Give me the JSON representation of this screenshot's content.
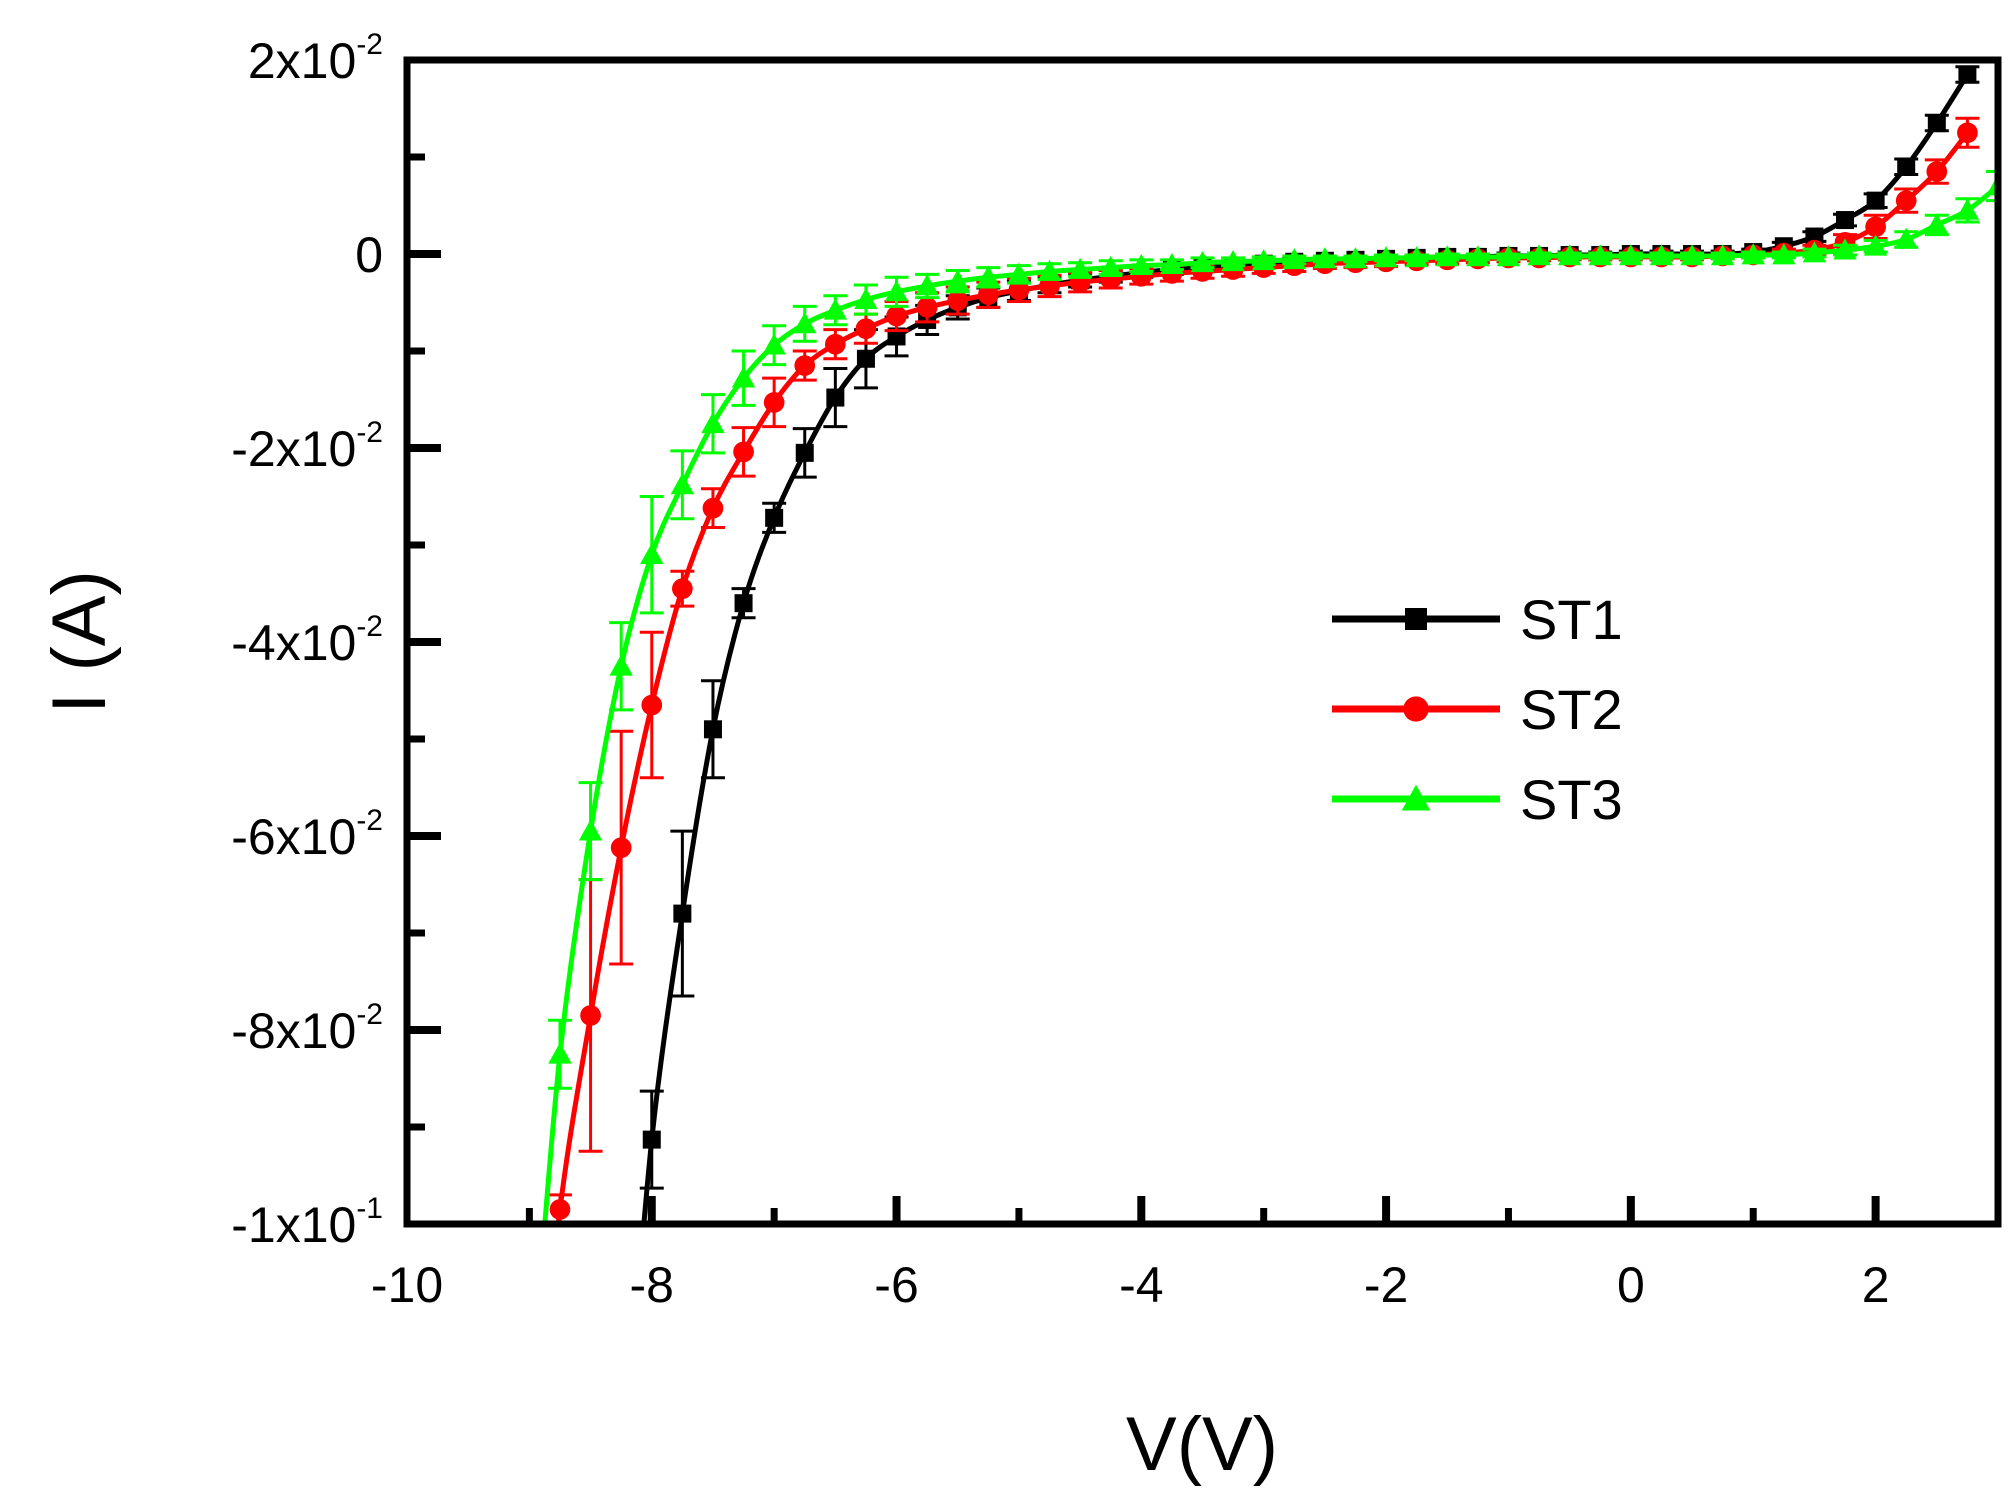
{
  "chart_data": {
    "type": "line",
    "xlabel": "V(V)",
    "ylabel": "I (A)",
    "xlim": [
      -10,
      3
    ],
    "ylim": [
      -0.1,
      0.02
    ],
    "x_ticks": [
      {
        "value": -10,
        "label": "-10"
      },
      {
        "value": -8,
        "label": "-8"
      },
      {
        "value": -6,
        "label": "-6"
      },
      {
        "value": -4,
        "label": "-4"
      },
      {
        "value": -2,
        "label": "-2"
      },
      {
        "value": 0,
        "label": "0"
      },
      {
        "value": 2,
        "label": "2"
      }
    ],
    "y_ticks": [
      {
        "value": 0.02,
        "mantissa": "2x10",
        "exponent": "-2"
      },
      {
        "value": 0,
        "mantissa": "0",
        "exponent": ""
      },
      {
        "value": -0.02,
        "mantissa": "-2x10",
        "exponent": "-2"
      },
      {
        "value": -0.04,
        "mantissa": "-4x10",
        "exponent": "-2"
      },
      {
        "value": -0.06,
        "mantissa": "-6x10",
        "exponent": "-2"
      },
      {
        "value": -0.08,
        "mantissa": "-8x10",
        "exponent": "-2"
      },
      {
        "value": -0.1,
        "mantissa": "-1x10",
        "exponent": "-1"
      }
    ],
    "legend_position": "center-right",
    "series": [
      {
        "name": "ST1",
        "color": "#000000",
        "marker": "square",
        "x": [
          -8.0,
          -7.75,
          -7.5,
          -7.25,
          -7.0,
          -6.75,
          -6.5,
          -6.25,
          -6.0,
          -5.75,
          -5.5,
          -5.25,
          -5.0,
          -4.75,
          -4.5,
          -4.25,
          -4.0,
          -3.75,
          -3.5,
          -3.25,
          -3.0,
          -2.75,
          -2.5,
          -2.25,
          -2.0,
          -1.75,
          -1.5,
          -1.25,
          -1.0,
          -0.75,
          -0.5,
          -0.25,
          0.0,
          0.25,
          0.5,
          0.75,
          1.0,
          1.25,
          1.5,
          1.75,
          2.0,
          2.25,
          2.5,
          2.75
        ],
        "y": [
          -0.0913,
          -0.068,
          -0.049,
          -0.036,
          -0.0272,
          -0.0205,
          -0.0148,
          -0.0108,
          -0.0085,
          -0.0068,
          -0.0055,
          -0.0045,
          -0.0038,
          -0.0032,
          -0.0027,
          -0.0023,
          -0.0019,
          -0.0016,
          -0.0014,
          -0.0012,
          -0.001,
          -0.0008,
          -0.0007,
          -0.0006,
          -0.0005,
          -0.0004,
          -0.0003,
          -0.0003,
          -0.0002,
          -0.0002,
          -0.0001,
          -0.0001,
          0.0,
          0.0,
          0.0,
          0.0,
          0.0002,
          0.0008,
          0.0018,
          0.0035,
          0.0055,
          0.009,
          0.0135,
          0.0185
        ],
        "err": [
          0.005,
          0.0085,
          0.005,
          0.0015,
          0.0015,
          0.0025,
          0.003,
          0.003,
          0.002,
          0.0015,
          0.0012,
          0.001,
          0.001,
          0.0008,
          0.0007,
          0.0006,
          0.0005,
          0.0005,
          0.0004,
          0.0004,
          0.0003,
          0.0003,
          0.0003,
          0.0003,
          0.0003,
          0.0003,
          0.0003,
          0.0003,
          0.0003,
          0.0003,
          0.0003,
          0.0003,
          0.0003,
          0.0003,
          0.0003,
          0.0003,
          0.0003,
          0.0004,
          0.0005,
          0.0006,
          0.0007,
          0.0008,
          0.0008,
          0.0008
        ]
      },
      {
        "name": "ST2",
        "color": "#ff0000",
        "marker": "circle",
        "x": [
          -8.75,
          -8.5,
          -8.25,
          -8.0,
          -7.75,
          -7.5,
          -7.25,
          -7.0,
          -6.75,
          -6.5,
          -6.25,
          -6.0,
          -5.75,
          -5.5,
          -5.25,
          -5.0,
          -4.75,
          -4.5,
          -4.25,
          -4.0,
          -3.75,
          -3.5,
          -3.25,
          -3.0,
          -2.75,
          -2.5,
          -2.25,
          -2.0,
          -1.75,
          -1.5,
          -1.25,
          -1.0,
          -0.75,
          -0.5,
          -0.25,
          0.0,
          0.25,
          0.5,
          0.75,
          1.0,
          1.25,
          1.5,
          1.75,
          2.0,
          2.25,
          2.5,
          2.75
        ],
        "y": [
          -0.0985,
          -0.0785,
          -0.0612,
          -0.0465,
          -0.0345,
          -0.0262,
          -0.0204,
          -0.0153,
          -0.0115,
          -0.0093,
          -0.0077,
          -0.0064,
          -0.0055,
          -0.0048,
          -0.0042,
          -0.0037,
          -0.0033,
          -0.0029,
          -0.0026,
          -0.0023,
          -0.002,
          -0.0018,
          -0.0016,
          -0.0014,
          -0.0012,
          -0.001,
          -0.0009,
          -0.0008,
          -0.0007,
          -0.0006,
          -0.0005,
          -0.0004,
          -0.0004,
          -0.0003,
          -0.0003,
          -0.0003,
          -0.0003,
          -0.0003,
          -0.0002,
          -0.0001,
          0.0001,
          0.0004,
          0.0012,
          0.0028,
          0.0055,
          0.0085,
          0.0125
        ],
        "err": [
          0.0015,
          0.014,
          0.012,
          0.0075,
          0.0018,
          0.002,
          0.0025,
          0.0025,
          0.0015,
          0.0015,
          0.0015,
          0.0015,
          0.0015,
          0.0014,
          0.0013,
          0.0012,
          0.0011,
          0.001,
          0.0009,
          0.0008,
          0.0008,
          0.0007,
          0.0007,
          0.0006,
          0.0006,
          0.0005,
          0.0005,
          0.0005,
          0.0004,
          0.0004,
          0.0004,
          0.0004,
          0.0003,
          0.0003,
          0.0003,
          0.0003,
          0.0003,
          0.0003,
          0.0003,
          0.0003,
          0.0004,
          0.0005,
          0.0008,
          0.0012,
          0.0012,
          0.0012,
          0.0015
        ]
      },
      {
        "name": "ST3",
        "color": "#00ff00",
        "marker": "triangle",
        "x": [
          -8.75,
          -8.5,
          -8.25,
          -8.0,
          -7.75,
          -7.5,
          -7.25,
          -7.0,
          -6.75,
          -6.5,
          -6.25,
          -6.0,
          -5.75,
          -5.5,
          -5.25,
          -5.0,
          -4.75,
          -4.5,
          -4.25,
          -4.0,
          -3.75,
          -3.5,
          -3.25,
          -3.0,
          -2.75,
          -2.5,
          -2.25,
          -2.0,
          -1.75,
          -1.5,
          -1.25,
          -1.0,
          -0.75,
          -0.5,
          -0.25,
          0.0,
          0.25,
          0.5,
          0.75,
          1.0,
          1.25,
          1.5,
          1.75,
          2.0,
          2.25,
          2.5,
          2.75,
          3.0
        ],
        "y": [
          -0.0825,
          -0.0595,
          -0.0425,
          -0.031,
          -0.0238,
          -0.0175,
          -0.0128,
          -0.0094,
          -0.0072,
          -0.0058,
          -0.0047,
          -0.0039,
          -0.0033,
          -0.0028,
          -0.0024,
          -0.0021,
          -0.0018,
          -0.0016,
          -0.0014,
          -0.0012,
          -0.0011,
          -0.0009,
          -0.0008,
          -0.0007,
          -0.0006,
          -0.0005,
          -0.0005,
          -0.0004,
          -0.0004,
          -0.0003,
          -0.0003,
          -0.0003,
          -0.0002,
          -0.0002,
          -0.0002,
          -0.0002,
          -0.0002,
          -0.0002,
          -0.0002,
          -0.0001,
          -0.0001,
          0.0001,
          0.0004,
          0.0008,
          0.0015,
          0.003,
          0.0045,
          0.007
        ],
        "err": [
          0.0035,
          0.005,
          0.0045,
          0.006,
          0.0035,
          0.003,
          0.0028,
          0.002,
          0.0018,
          0.0015,
          0.0015,
          0.0015,
          0.0012,
          0.0011,
          0.001,
          0.0009,
          0.0008,
          0.0007,
          0.0007,
          0.0006,
          0.0005,
          0.0005,
          0.0004,
          0.0004,
          0.0004,
          0.0003,
          0.0003,
          0.0003,
          0.0003,
          0.0003,
          0.0003,
          0.0003,
          0.0003,
          0.0003,
          0.0003,
          0.0003,
          0.0003,
          0.0003,
          0.0003,
          0.0003,
          0.0003,
          0.0004,
          0.0005,
          0.0006,
          0.0008,
          0.001,
          0.0012,
          0.0015
        ]
      }
    ]
  }
}
